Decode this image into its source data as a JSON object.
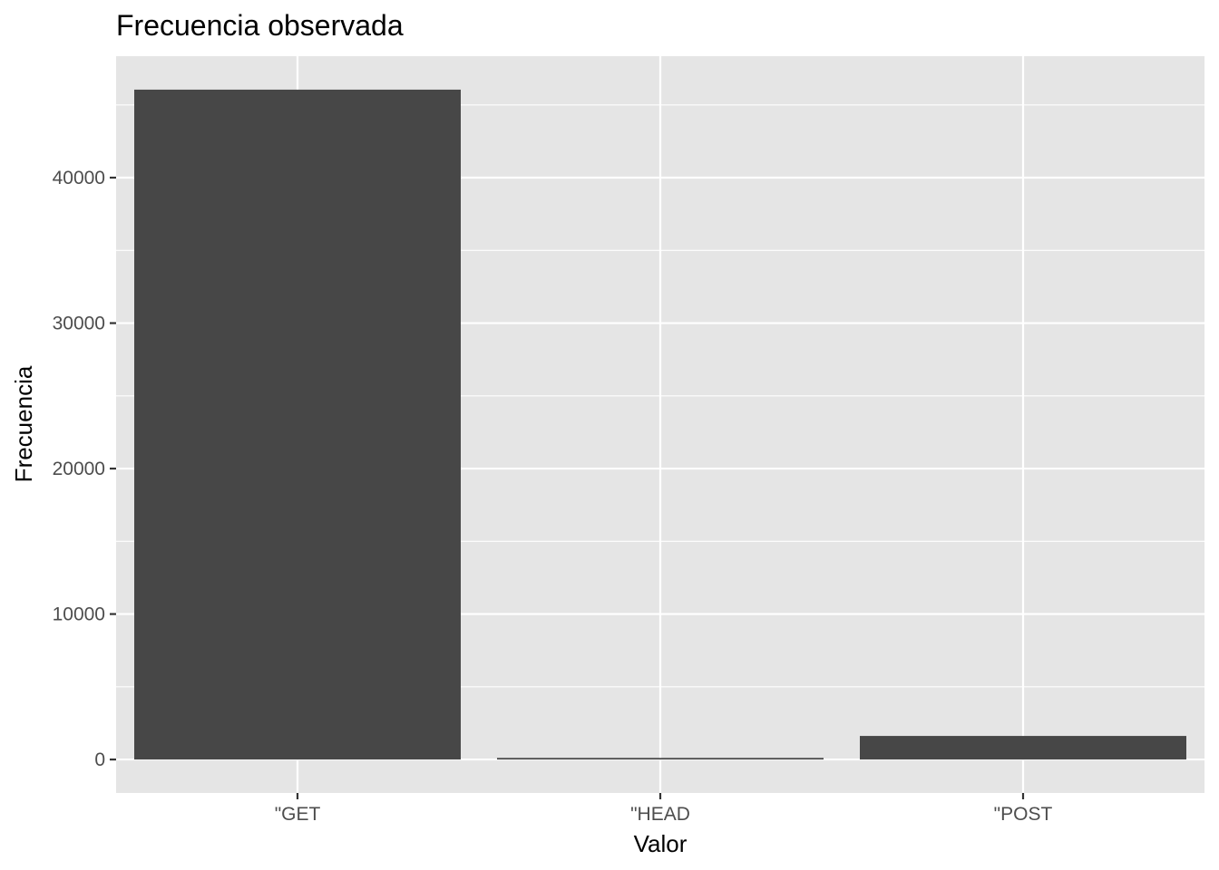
{
  "chart_data": {
    "type": "bar",
    "title": "Frecuencia observada",
    "xlabel": "Valor",
    "ylabel": "Frecuencia",
    "categories": [
      "\"GET",
      "\"HEAD",
      "\"POST"
    ],
    "values": [
      46050,
      110,
      1620
    ],
    "ylim": [
      -2300,
      48350
    ],
    "yticks": [
      0,
      10000,
      20000,
      30000,
      40000
    ],
    "ytick_labels": [
      "0",
      "10000",
      "20000",
      "30000",
      "40000"
    ],
    "grid": true,
    "legend": "none",
    "colors": {
      "bar": "#474747",
      "panel": "#e5e5e5",
      "grid": "#ffffff",
      "tick_label": "#4d4d4d"
    }
  }
}
